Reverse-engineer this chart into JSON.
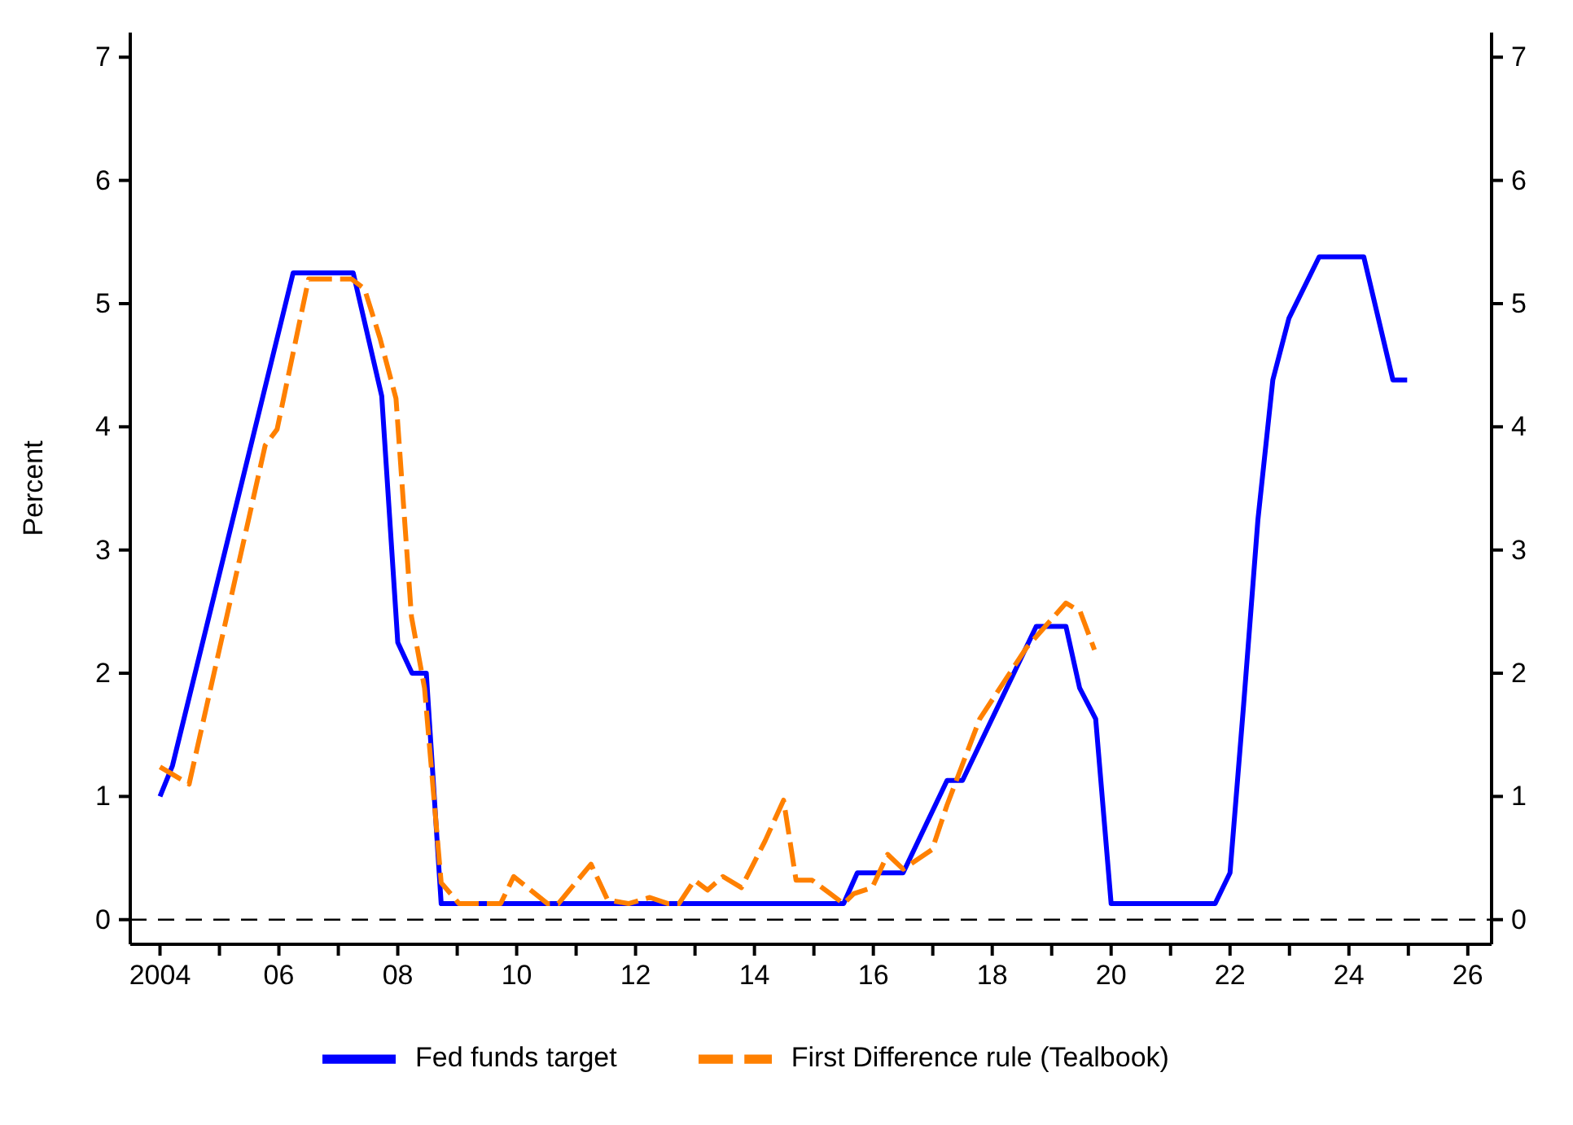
{
  "chart_data": {
    "type": "line",
    "ylabel": "Percent",
    "xlim": [
      2003.5,
      2026.4
    ],
    "ylim": [
      -0.2,
      7.2
    ],
    "y2lim": [
      -0.2,
      7.2
    ],
    "xticks": [
      {
        "value": 2004,
        "label": "2004"
      },
      {
        "value": 2005,
        "label": null
      },
      {
        "value": 2006,
        "label": "06"
      },
      {
        "value": 2007,
        "label": null
      },
      {
        "value": 2008,
        "label": "08"
      },
      {
        "value": 2009,
        "label": null
      },
      {
        "value": 2010,
        "label": "10"
      },
      {
        "value": 2011,
        "label": null
      },
      {
        "value": 2012,
        "label": "12"
      },
      {
        "value": 2013,
        "label": null
      },
      {
        "value": 2014,
        "label": "14"
      },
      {
        "value": 2015,
        "label": null
      },
      {
        "value": 2016,
        "label": "16"
      },
      {
        "value": 2017,
        "label": null
      },
      {
        "value": 2018,
        "label": "18"
      },
      {
        "value": 2019,
        "label": null
      },
      {
        "value": 2020,
        "label": "20"
      },
      {
        "value": 2021,
        "label": null
      },
      {
        "value": 2022,
        "label": "22"
      },
      {
        "value": 2023,
        "label": null
      },
      {
        "value": 2024,
        "label": "24"
      },
      {
        "value": 2025,
        "label": null
      },
      {
        "value": 2026,
        "label": "26"
      }
    ],
    "yticks": [
      0,
      1,
      2,
      3,
      4,
      5,
      6,
      7
    ],
    "y2ticks": [
      0,
      1,
      2,
      3,
      4,
      5,
      6,
      7
    ],
    "grid": false,
    "legend": "bottom",
    "marker": "none",
    "ref_lines": [
      {
        "axis": "y",
        "value": 0,
        "color": "#000000",
        "line_style": "dashed"
      }
    ],
    "series": [
      {
        "name": "Fed funds target",
        "color": "#0000ff",
        "line_style": "solid",
        "x": [
          2004.0,
          2004.21,
          2006.24,
          2007.25,
          2007.73,
          2008.0,
          2008.24,
          2008.48,
          2008.73,
          2015.5,
          2015.73,
          2016.5,
          2017.24,
          2017.5,
          2018.74,
          2019.24,
          2019.47,
          2019.74,
          2020.0,
          2021.75,
          2022.0,
          2022.23,
          2022.47,
          2022.72,
          2022.99,
          2023.5,
          2024.25,
          2024.74,
          2024.98
        ],
        "values": [
          1.0,
          1.25,
          5.25,
          5.25,
          4.25,
          2.25,
          2.0,
          2.0,
          0.13,
          0.13,
          0.38,
          0.38,
          1.13,
          1.13,
          2.38,
          2.38,
          1.88,
          1.63,
          0.13,
          0.13,
          0.38,
          1.75,
          3.25,
          4.38,
          4.88,
          5.38,
          5.38,
          4.38,
          4.38
        ]
      },
      {
        "name": "First Difference rule (Tealbook)",
        "color": "#ff8000",
        "line_style": "dashed",
        "x": [
          2004.0,
          2004.49,
          2005.77,
          2005.97,
          2006.5,
          2007.22,
          2007.44,
          2007.7,
          2007.97,
          2008.23,
          2008.45,
          2008.73,
          2009.03,
          2009.73,
          2009.95,
          2010.52,
          2010.7,
          2011.25,
          2011.53,
          2011.88,
          2012.24,
          2012.55,
          2012.73,
          2012.99,
          2013.21,
          2013.47,
          2013.78,
          2014.18,
          2014.49,
          2014.7,
          2014.97,
          2015.5,
          2015.67,
          2015.98,
          2016.24,
          2016.5,
          2016.99,
          2017.24,
          2017.79,
          2018.58,
          2019.24,
          2019.48,
          2019.72
        ],
        "values": [
          1.24,
          1.1,
          3.85,
          3.98,
          5.2,
          5.2,
          5.12,
          4.72,
          4.23,
          2.46,
          1.88,
          0.3,
          0.13,
          0.13,
          0.35,
          0.13,
          0.13,
          0.45,
          0.16,
          0.13,
          0.18,
          0.13,
          0.13,
          0.32,
          0.24,
          0.35,
          0.26,
          0.64,
          0.97,
          0.32,
          0.32,
          0.13,
          0.21,
          0.26,
          0.53,
          0.41,
          0.57,
          0.93,
          1.63,
          2.21,
          2.57,
          2.5,
          2.19
        ]
      }
    ]
  }
}
